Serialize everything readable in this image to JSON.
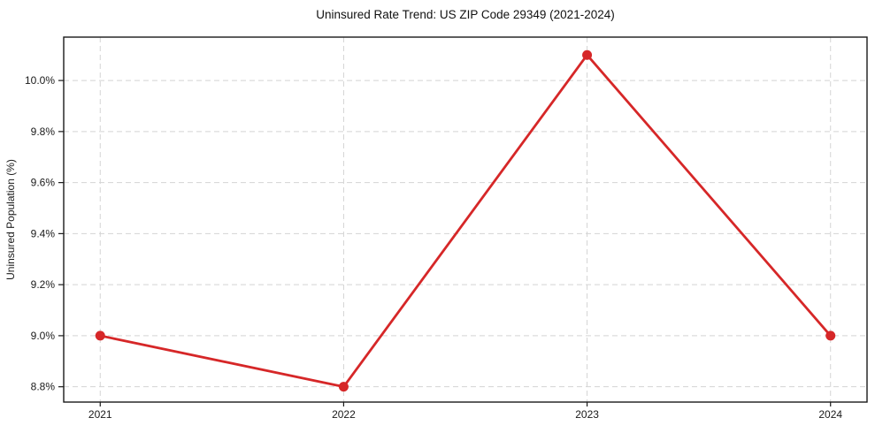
{
  "chart_data": {
    "type": "line",
    "title": "Uninsured Rate Trend: US ZIP Code 29349 (2021-2024)",
    "xlabel": "",
    "ylabel": "Uninsured Population (%)",
    "x": [
      2021,
      2022,
      2023,
      2024
    ],
    "x_tick_labels": [
      "2021",
      "2022",
      "2023",
      "2024"
    ],
    "series": [
      {
        "name": "Uninsured rate",
        "values": [
          9.0,
          8.8,
          10.1,
          9.0
        ],
        "color": "#d62728",
        "marker": "circle",
        "line_width": 2.8,
        "marker_radius": 5.5
      }
    ],
    "y_ticks": [
      8.8,
      9.0,
      9.2,
      9.4,
      9.6,
      9.8,
      10.0
    ],
    "y_tick_labels": [
      "8.8%",
      "9.0%",
      "9.2%",
      "9.4%",
      "9.6%",
      "9.8%",
      "10.0%"
    ],
    "xlim": [
      2020.85,
      2024.15
    ],
    "ylim": [
      8.74,
      10.17
    ],
    "grid": true,
    "grid_style": "dashed",
    "grid_color": "#d4d4d4",
    "spine_color": "#1a1a1a",
    "tick_color": "#1a1a1a",
    "background": "#ffffff",
    "legend_position": "none"
  }
}
